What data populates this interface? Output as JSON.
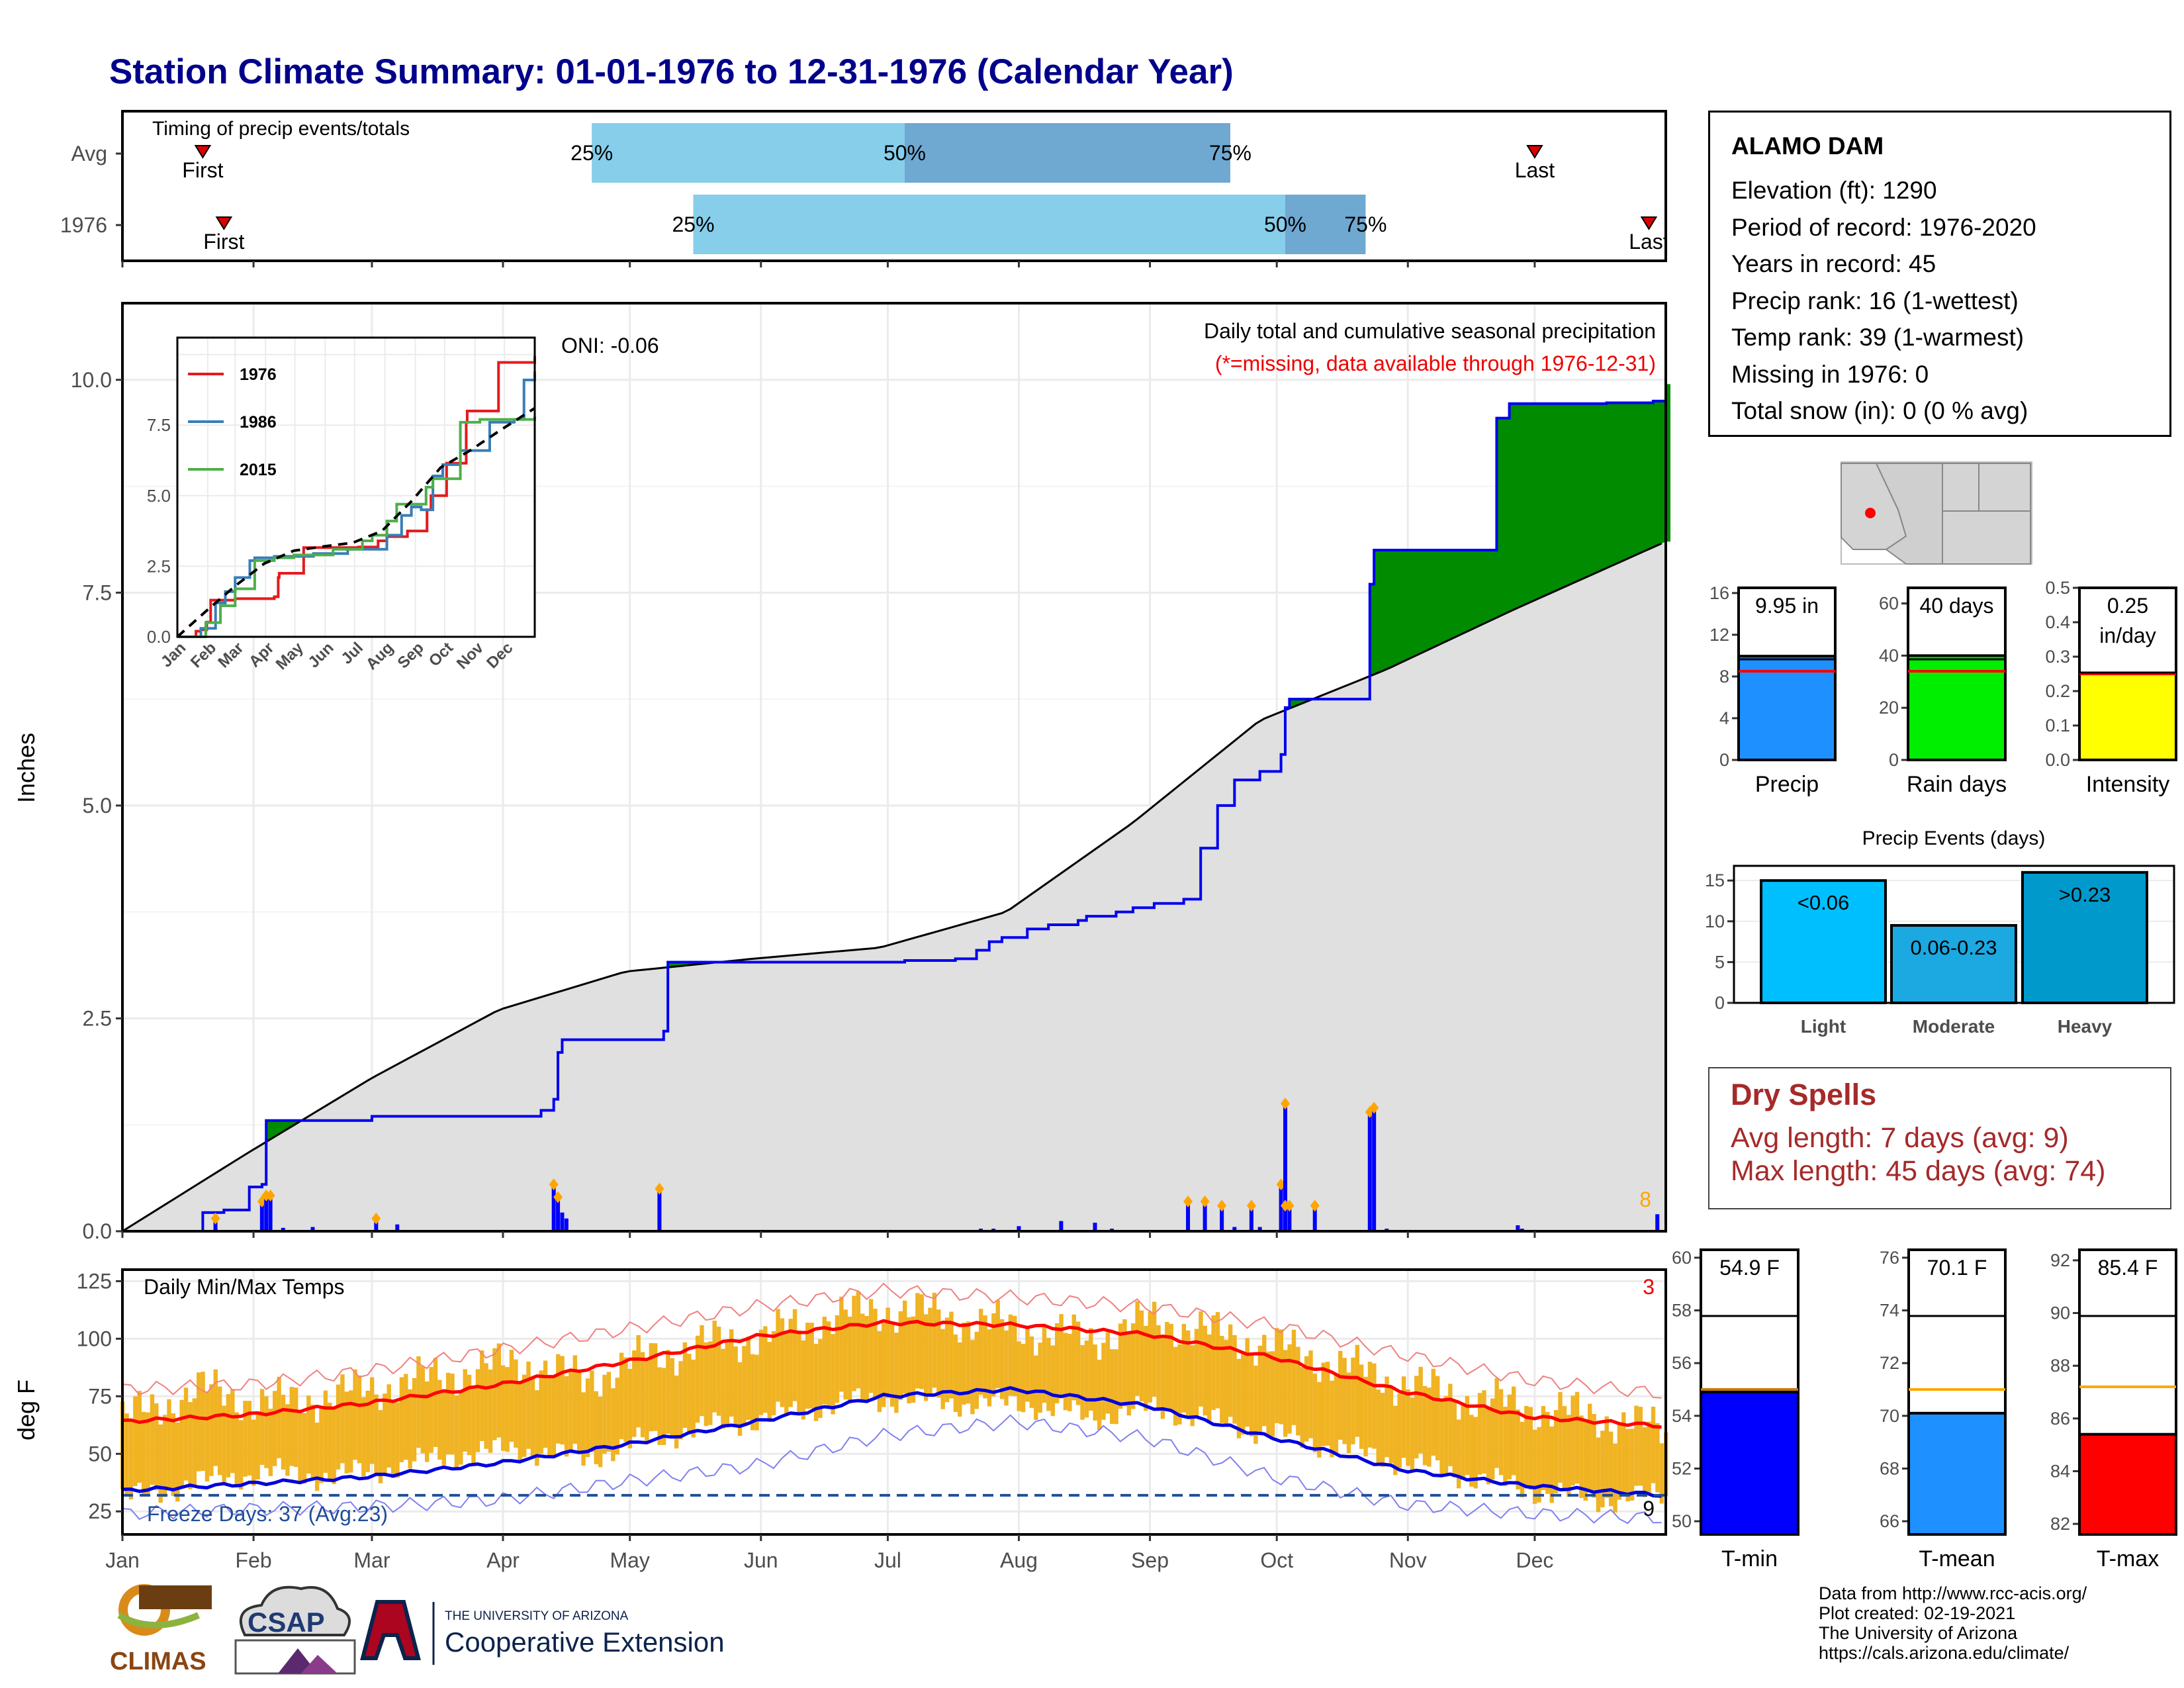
{
  "title": "Station Climate Summary: 01-01-1976 to 12-31-1976 (Calendar Year)",
  "timing": {
    "title": "Timing of precip events/totals",
    "rows": [
      {
        "label": "Avg",
        "first_day": 20,
        "last_day": 335,
        "p25_day": 112,
        "p50_day": 186,
        "p75_day": 263,
        "first_text": "First",
        "last_text": "Last",
        "p25_text": "25%",
        "p50_text": "50%",
        "p75_text": "75%"
      },
      {
        "label": "1976",
        "first_day": 25,
        "last_day": 362,
        "p25_day": 136,
        "p50_day": 276,
        "p75_day": 295,
        "first_text": "First",
        "last_text": "Last",
        "p25_text": "25%",
        "p50_text": "50%",
        "p75_text": "75%"
      }
    ],
    "colors": {
      "light": "#87ceeb",
      "dark": "#6fa8d0",
      "marker": "#dd0000"
    }
  },
  "precip_panel": {
    "ylabel": "Inches",
    "y_ticks": [
      "0.0",
      "2.5",
      "5.0",
      "7.5",
      "10.0"
    ],
    "oni": "ONI: -0.06",
    "title": "Daily total and cumulative seasonal precipitation",
    "subtitle": "(*=missing, data available through 1976-12-31)",
    "corner_count": "8"
  },
  "inset": {
    "x_ticks": [
      "Jan",
      "Feb",
      "Mar",
      "Apr",
      "May",
      "Jun",
      "Jul",
      "Aug",
      "Sep",
      "Oct",
      "Nov",
      "Dec"
    ],
    "y_ticks": [
      "0.0",
      "2.5",
      "5.0",
      "7.5"
    ],
    "legend": [
      "1976",
      "1986",
      "2015"
    ]
  },
  "temp_panel": {
    "ylabel": "deg F",
    "title": "Daily Min/Max Temps",
    "y_ticks": [
      "25",
      "50",
      "75",
      "100",
      "125"
    ],
    "freeze_text": "Freeze Days: 37 (Avg:23)",
    "count_hot": "3",
    "count_cold": "9"
  },
  "months": [
    "Jan",
    "Feb",
    "Mar",
    "Apr",
    "May",
    "Jun",
    "Jul",
    "Aug",
    "Sep",
    "Oct",
    "Nov",
    "Dec"
  ],
  "station": {
    "name": "ALAMO DAM",
    "lines": [
      "Elevation (ft): 1290",
      "Period of record: 1976-2020",
      "Years in record: 45",
      "Precip rank: 16 (1-wettest)",
      "Temp rank: 39 (1-warmest)",
      "Missing in 1976: 0",
      "Total snow (in): 0 (0 % avg)"
    ]
  },
  "stat_bars": {
    "precip": {
      "label": "Precip",
      "value_text": "9.95 in",
      "value": 9.95,
      "avg": 8.5,
      "ticks": [
        "0",
        "4",
        "8",
        "12",
        "16"
      ],
      "ymin": 0,
      "ymax": 16.5,
      "color": "#1e90ff"
    },
    "rain_days": {
      "label": "Rain days",
      "value_text": "40 days",
      "value": 40,
      "avg": 34,
      "ticks": [
        "0",
        "20",
        "40",
        "60"
      ],
      "ymin": 0,
      "ymax": 66,
      "color": "#00ee00"
    },
    "intensity": {
      "label": "Intensity",
      "value_text": "0.25 in/day",
      "value_line1": "0.25",
      "value_line2": "in/day",
      "value": 0.25,
      "avg": 0.25,
      "ticks": [
        "0.0",
        "0.1",
        "0.2",
        "0.3",
        "0.4",
        "0.5"
      ],
      "ymin": 0,
      "ymax": 0.5,
      "color": "#ffff00"
    }
  },
  "precip_events": {
    "title": "Precip Events (days)",
    "ticks": [
      "0",
      "5",
      "10",
      "15"
    ],
    "categories": [
      "Light",
      "Moderate",
      "Heavy"
    ],
    "bar_labels": [
      "<0.06",
      "0.06-0.23",
      ">0.23"
    ],
    "values": [
      15,
      9.5,
      16
    ],
    "ymax": 16.8,
    "colors": [
      "#00bfff",
      "#1ca8e0",
      "#0099cc"
    ]
  },
  "dry_spells": {
    "title": "Dry Spells",
    "avg_line": "Avg length: 7 days (avg: 9)",
    "max_line": "Max length: 45 days (avg: 74)",
    "color": "#a52a2a"
  },
  "temp_bars": {
    "tmin": {
      "label": "T-min",
      "value_text": "54.9 F",
      "value": 54.9,
      "avg": 55.0,
      "ticks": [
        "50",
        "52",
        "54",
        "56",
        "58",
        "60"
      ],
      "ymin": 49.5,
      "ymax": 60.3,
      "color": "#0000ff"
    },
    "tmean": {
      "label": "T-mean",
      "value_text": "70.1 F",
      "value": 70.1,
      "avg": 71.0,
      "ticks": [
        "66",
        "68",
        "70",
        "72",
        "74",
        "76"
      ],
      "ymin": 65.5,
      "ymax": 76.3,
      "color": "#1e90ff"
    },
    "tmax": {
      "label": "T-max",
      "value_text": "85.4 F",
      "value": 85.4,
      "avg": 87.2,
      "ticks": [
        "82",
        "84",
        "86",
        "88",
        "90",
        "92"
      ],
      "ymin": 81.6,
      "ymax": 92.4,
      "color": "#ff0000"
    }
  },
  "footer": {
    "lines": [
      "Data from http://www.rcc-acis.org/",
      "Plot created: 02-19-2021",
      "The University of Arizona",
      "https://cals.arizona.edu/climate/"
    ],
    "climas": "CLIMAS",
    "csap": "CSAP",
    "ua_small": "THE UNIVERSITY OF ARIZONA",
    "ua_big": "Cooperative Extension"
  },
  "chart_data": {
    "type": "area",
    "title": "Daily total and cumulative seasonal precipitation",
    "ylabel": "Inches",
    "ylim": [
      0,
      10.9
    ],
    "cumulative_1976": {
      "x_day": [
        1,
        20,
        25,
        30,
        31,
        34,
        35,
        60,
        100,
        103,
        104,
        105,
        129,
        130,
        135,
        186,
        198,
        203,
        206,
        209,
        215,
        220,
        227,
        229,
        236,
        240,
        245,
        252,
        256,
        260,
        264,
        270,
        275,
        276,
        277,
        296,
        297,
        326,
        329,
        352,
        363,
        366
      ],
      "y": [
        0,
        0.22,
        0.25,
        0.25,
        0.52,
        0.55,
        1.3,
        1.35,
        1.42,
        1.55,
        2.1,
        2.25,
        2.35,
        3.16,
        3.16,
        3.18,
        3.2,
        3.3,
        3.4,
        3.45,
        3.55,
        3.6,
        3.65,
        3.7,
        3.75,
        3.8,
        3.85,
        3.9,
        4.5,
        5.0,
        5.3,
        5.4,
        5.6,
        6.15,
        6.25,
        7.6,
        8.0,
        9.55,
        9.72,
        9.73,
        9.75,
        9.95
      ]
    },
    "average_cumulative": {
      "x_day": [
        1,
        30,
        60,
        90,
        120,
        150,
        180,
        210,
        240,
        270,
        300,
        330,
        366
      ],
      "y": [
        0,
        0.9,
        1.8,
        2.6,
        3.05,
        3.2,
        3.33,
        3.75,
        4.8,
        6.0,
        6.6,
        7.3,
        8.1
      ]
    },
    "daily_precip": {
      "x_day": [
        23,
        34,
        35,
        36,
        39,
        46,
        61,
        66,
        103,
        104,
        105,
        106,
        128,
        204,
        207,
        213,
        223,
        231,
        235,
        253,
        257,
        261,
        264,
        268,
        270,
        275,
        276,
        277,
        276,
        283,
        296,
        297,
        300,
        331,
        332,
        364
      ],
      "y": [
        0.15,
        0.35,
        0.42,
        0.42,
        0.04,
        0.05,
        0.15,
        0.08,
        0.55,
        0.4,
        0.22,
        0.15,
        0.5,
        0.03,
        0.03,
        0.06,
        0.12,
        0.1,
        0.03,
        0.35,
        0.35,
        0.3,
        0.05,
        0.3,
        0.05,
        0.55,
        1.5,
        0.3,
        0.3,
        0.3,
        1.4,
        1.45,
        0.03,
        0.07,
        0.03,
        0.2
      ]
    },
    "inset_series": [
      {
        "name": "1976",
        "color": "#e41a1c",
        "x_day": [
          1,
          20,
          25,
          31,
          35,
          60,
          100,
          104,
          105,
          130,
          186,
          206,
          215,
          236,
          256,
          260,
          276,
          296,
          297,
          329,
          366
        ],
        "y": [
          0,
          0.2,
          0.25,
          0.52,
          1.3,
          1.35,
          1.42,
          2.1,
          2.25,
          3.16,
          3.18,
          3.4,
          3.55,
          3.75,
          4.5,
          5.0,
          6.15,
          7.6,
          8.0,
          9.72,
          9.95
        ]
      },
      {
        "name": "1986",
        "color": "#377eb8",
        "x_day": [
          1,
          25,
          40,
          50,
          60,
          75,
          80,
          100,
          140,
          175,
          200,
          215,
          230,
          240,
          250,
          262,
          272,
          290,
          320,
          345,
          355,
          366
        ],
        "y": [
          0,
          0.3,
          1.2,
          1.6,
          2.1,
          2.7,
          2.8,
          2.85,
          2.95,
          3.1,
          3.1,
          3.6,
          4.3,
          4.6,
          4.5,
          5.7,
          6.1,
          6.6,
          7.6,
          7.7,
          9.1,
          9.4
        ]
      },
      {
        "name": "2015",
        "color": "#4daf4a",
        "x_day": [
          1,
          30,
          45,
          60,
          80,
          100,
          120,
          160,
          190,
          200,
          215,
          225,
          240,
          255,
          262,
          290,
          310,
          340,
          366
        ],
        "y": [
          0,
          0.5,
          1.1,
          1.7,
          2.7,
          2.8,
          2.9,
          3.1,
          3.4,
          3.6,
          4.1,
          4.7,
          4.7,
          5.3,
          5.6,
          7.6,
          7.7,
          7.7,
          7.8
        ]
      },
      {
        "name": "average",
        "color": "#000000",
        "x_day": [
          1,
          30,
          60,
          90,
          120,
          150,
          180,
          210,
          240,
          270,
          300,
          330,
          366
        ],
        "y": [
          0,
          0.9,
          1.8,
          2.6,
          3.05,
          3.2,
          3.33,
          3.75,
          4.8,
          6.0,
          6.6,
          7.3,
          8.1
        ]
      }
    ],
    "temperature": {
      "ylim": [
        15,
        130
      ],
      "avg_max": {
        "x_day": [
          1,
          31,
          59,
          90,
          120,
          151,
          181,
          212,
          243,
          273,
          304,
          334,
          366
        ],
        "y": [
          64,
          67,
          72,
          80,
          90,
          101,
          107,
          106,
          102,
          92,
          77,
          66,
          62
        ]
      },
      "avg_min": {
        "x_day": [
          1,
          31,
          59,
          90,
          120,
          151,
          181,
          212,
          243,
          273,
          304,
          334,
          366
        ],
        "y": [
          34,
          37,
          40,
          46,
          54,
          64,
          75,
          78,
          71,
          57,
          43,
          36,
          32
        ]
      },
      "record_max": {
        "x_day": [
          1,
          31,
          59,
          90,
          120,
          151,
          181,
          212,
          243,
          273,
          304,
          334,
          366
        ],
        "y": [
          78,
          80,
          86,
          95,
          104,
          114,
          121,
          118,
          114,
          106,
          93,
          82,
          76
        ]
      },
      "record_min": {
        "x_day": [
          1,
          31,
          59,
          90,
          120,
          151,
          181,
          212,
          243,
          273,
          304,
          334,
          366
        ],
        "y": [
          24,
          26,
          27,
          30,
          38,
          45,
          58,
          64,
          57,
          40,
          28,
          24,
          22
        ]
      },
      "obs_max": {
        "x_day": [
          1,
          20,
          35,
          50,
          65,
          80,
          95,
          110,
          125,
          140,
          155,
          170,
          185,
          200,
          215,
          230,
          245,
          260,
          275,
          290,
          305,
          320,
          335,
          350,
          366
        ],
        "y": [
          65,
          78,
          72,
          75,
          80,
          85,
          90,
          82,
          92,
          98,
          102,
          110,
          113,
          108,
          104,
          100,
          108,
          102,
          96,
          88,
          80,
          74,
          70,
          66,
          60
        ]
      },
      "obs_min": {
        "x_day": [
          1,
          20,
          35,
          50,
          65,
          80,
          95,
          110,
          125,
          140,
          155,
          170,
          185,
          200,
          215,
          230,
          245,
          260,
          275,
          290,
          305,
          320,
          335,
          350,
          366
        ],
        "y": [
          30,
          38,
          42,
          40,
          44,
          50,
          52,
          48,
          56,
          62,
          66,
          72,
          74,
          72,
          72,
          66,
          70,
          64,
          58,
          52,
          46,
          40,
          34,
          30,
          32
        ]
      },
      "freeze_line": 32
    }
  }
}
